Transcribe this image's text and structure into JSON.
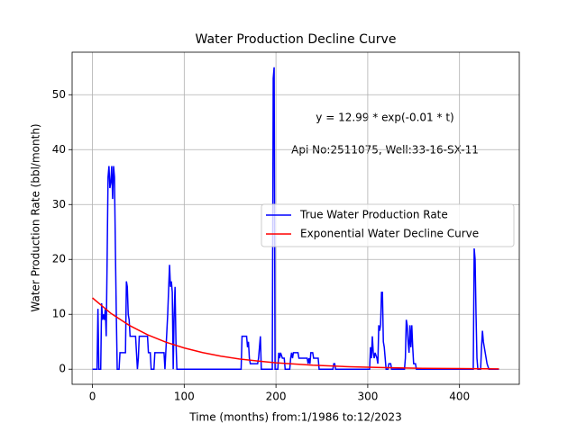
{
  "chart_data": {
    "type": "line",
    "title": "Water Production Decline Curve",
    "xlabel": "Time (months) from:1/1986 to:12/2023",
    "ylabel": "Water Production Rate (bbl/month)",
    "annotations": [
      "y = 12.99 * exp(-0.01 * t)",
      "Api No:2511075, Well:33-16-SX-11"
    ],
    "xlim": [
      -22.15,
      465.15
    ],
    "xticks": [
      0,
      100,
      200,
      300,
      400
    ],
    "ylim": [
      -2.75,
      57.75
    ],
    "yticks": [
      0,
      10,
      20,
      30,
      40,
      50
    ],
    "grid": true,
    "legend": "center right",
    "series": [
      {
        "name": "True Water Production Rate",
        "color": "#0000ff",
        "x": [
          0,
          5,
          6,
          7,
          9,
          10,
          11,
          12,
          13,
          14,
          15,
          16,
          17,
          18,
          19,
          20,
          21,
          22,
          23,
          24,
          25,
          26,
          27,
          29,
          30,
          36,
          37,
          38,
          39,
          40,
          41,
          47,
          48,
          49,
          50,
          51,
          60,
          61,
          63,
          64,
          67,
          68,
          78,
          79,
          82,
          84,
          85,
          86,
          87,
          88,
          89,
          90,
          91,
          92,
          162,
          163,
          168,
          169,
          170,
          171,
          172,
          180,
          181,
          183,
          184,
          196,
          197,
          198,
          199,
          202,
          203,
          204,
          205,
          207,
          209,
          210,
          215,
          216,
          217,
          218,
          219,
          224,
          225,
          234,
          235,
          236,
          237,
          238,
          240,
          241,
          246,
          247,
          262,
          263,
          264,
          265,
          302,
          303,
          304,
          305,
          306,
          307,
          308,
          310,
          311,
          312,
          313,
          314,
          315,
          316,
          317,
          318,
          319,
          320,
          322,
          323,
          325,
          326,
          340,
          341,
          342,
          343,
          344,
          345,
          346,
          347,
          348,
          349,
          350,
          352,
          353,
          415,
          416,
          417,
          418,
          419,
          420,
          423,
          424,
          425,
          426,
          428,
          430,
          432,
          443
        ],
        "values": [
          0,
          0,
          11,
          0,
          0,
          12,
          9,
          10,
          9,
          11,
          6,
          20,
          35,
          37,
          33,
          34,
          37,
          31,
          37,
          35,
          22,
          10,
          0,
          0,
          3,
          3,
          16,
          15,
          10,
          9,
          6,
          6,
          3,
          0,
          2,
          6,
          6,
          3,
          3,
          0,
          0,
          3,
          3,
          0,
          10,
          19,
          15,
          16,
          14,
          0,
          10,
          15,
          5,
          0,
          0,
          6,
          6,
          4,
          5,
          2,
          1,
          1,
          2,
          6,
          0,
          0,
          53,
          55,
          0,
          0,
          3,
          2,
          3,
          2,
          2,
          0,
          0,
          2,
          3,
          2,
          3,
          3,
          2,
          2,
          1,
          2,
          1,
          3,
          3,
          2,
          2,
          0,
          0,
          1,
          1,
          0,
          0,
          4,
          2,
          6,
          3,
          2,
          3,
          2,
          1,
          8,
          7,
          8,
          14,
          14,
          5,
          4,
          2,
          0,
          0,
          1,
          1,
          0,
          0,
          2,
          9,
          8,
          5,
          3,
          8,
          4,
          8,
          4,
          1,
          1,
          0,
          0,
          22,
          20,
          10,
          2,
          0,
          0,
          4,
          7,
          5,
          3,
          1,
          0,
          0
        ]
      },
      {
        "name": "Exponential Water Decline Curve",
        "color": "#ff0000",
        "x": [
          0,
          20,
          40,
          60,
          80,
          100,
          120,
          140,
          160,
          180,
          200,
          240,
          280,
          320,
          360,
          400,
          443
        ],
        "values": [
          12.99,
          10.19,
          8.0,
          6.28,
          4.93,
          3.87,
          3.03,
          2.38,
          1.87,
          1.49,
          1.17,
          0.73,
          0.45,
          0.28,
          0.17,
          0.11,
          0.06
        ]
      }
    ]
  }
}
